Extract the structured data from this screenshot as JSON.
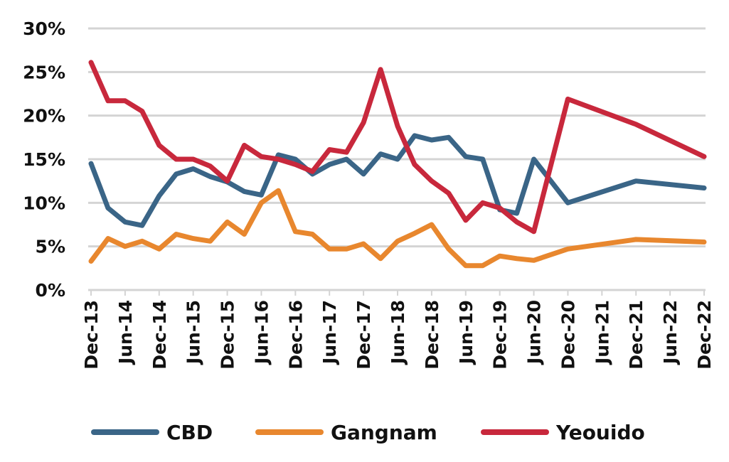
{
  "chart_data": {
    "type": "line",
    "title": "",
    "xlabel": "",
    "ylabel": "",
    "ylim": [
      0,
      30
    ],
    "yticks": [
      "0%",
      "5%",
      "10%",
      "15%",
      "20%",
      "25%",
      "30%"
    ],
    "grid": true,
    "legend_position": "bottom",
    "x_tick_labels": [
      "Dec-13",
      "Jun-14",
      "Dec-14",
      "Jun-15",
      "Dec-15",
      "Jun-16",
      "Dec-16",
      "Jun-17",
      "Dec-17",
      "Jun-18",
      "Dec-18",
      "Jun-19",
      "Dec-19",
      "Jun-20",
      "Dec-20",
      "Jun-21",
      "Dec-21",
      "Jun-22",
      "Dec-22"
    ],
    "x": [
      "Dec-13",
      "Mar-14",
      "Jun-14",
      "Sep-14",
      "Dec-14",
      "Mar-15",
      "Jun-15",
      "Sep-15",
      "Dec-15",
      "Mar-16",
      "Jun-16",
      "Sep-16",
      "Dec-16",
      "Mar-17",
      "Jun-17",
      "Sep-17",
      "Dec-17",
      "Mar-18",
      "Jun-18",
      "Sep-18",
      "Dec-18",
      "Mar-19",
      "Jun-19",
      "Sep-19",
      "Dec-19",
      "Mar-20",
      "Jun-20",
      "Dec-20",
      "Dec-21",
      "Dec-22"
    ],
    "series": [
      {
        "name": "CBD",
        "color": "#3a6587",
        "values": [
          14.5,
          9.4,
          7.8,
          7.4,
          10.8,
          13.3,
          13.9,
          13.0,
          12.4,
          11.3,
          10.9,
          15.5,
          15.0,
          13.3,
          14.4,
          15.0,
          13.3,
          15.6,
          15.0,
          17.7,
          17.2,
          17.5,
          15.3,
          15.0,
          9.2,
          8.8,
          15.0,
          10.0,
          12.5,
          11.7
        ]
      },
      {
        "name": "Gangnam",
        "color": "#e8872e",
        "values": [
          3.3,
          5.9,
          5.0,
          5.6,
          4.7,
          6.4,
          5.9,
          5.6,
          7.8,
          6.4,
          10.0,
          11.4,
          6.7,
          6.4,
          4.7,
          4.7,
          5.3,
          3.6,
          5.6,
          6.5,
          7.5,
          4.7,
          2.8,
          2.8,
          3.9,
          3.6,
          3.4,
          4.7,
          5.8,
          5.5
        ]
      },
      {
        "name": "Yeouido",
        "color": "#c8283c",
        "values": [
          26.1,
          21.7,
          21.7,
          20.5,
          16.6,
          15.0,
          15.0,
          14.2,
          12.5,
          16.6,
          15.3,
          15.0,
          14.4,
          13.6,
          16.1,
          15.8,
          19.2,
          25.3,
          18.8,
          14.4,
          12.5,
          11.1,
          8.0,
          10.0,
          9.4,
          7.8,
          6.7,
          21.9,
          19.0,
          15.3
        ]
      }
    ]
  }
}
